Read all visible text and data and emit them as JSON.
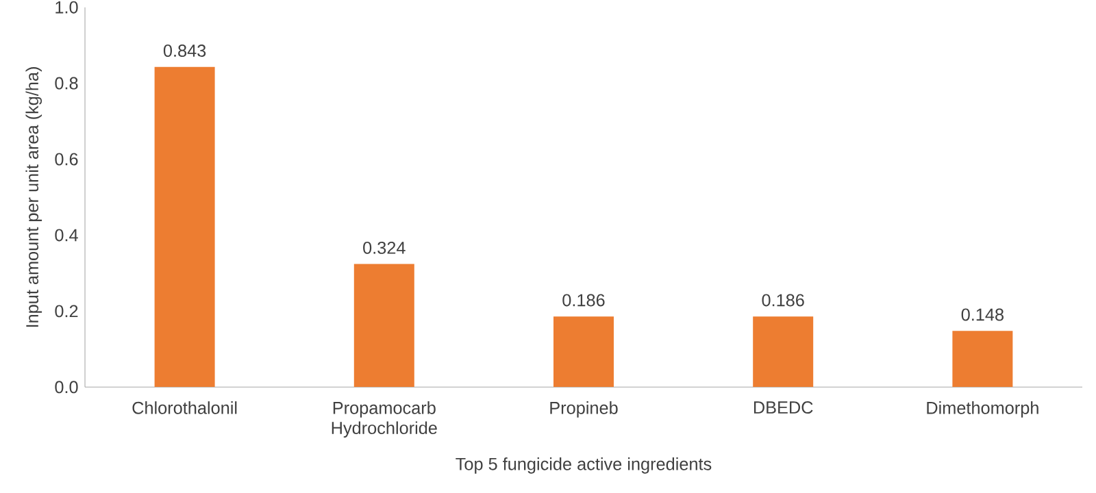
{
  "chart_data": {
    "type": "bar",
    "xlabel": "Top 5 fungicide active ingredients",
    "ylabel": "Input amount per unit area (kg/ha)",
    "categories": [
      "Chlorothalonil",
      "Propamocarb Hydrochloride",
      "Propineb",
      "DBEDC",
      "Dimethomorph"
    ],
    "values": [
      0.843,
      0.324,
      0.186,
      0.186,
      0.148
    ],
    "color": "#ed7d31",
    "ylim": [
      0,
      1.0
    ],
    "yticks": [
      {
        "value": 0,
        "label": "0.0"
      },
      {
        "value": 0.2,
        "label": "0.2"
      },
      {
        "value": 0.4,
        "label": "0.4"
      },
      {
        "value": 0.6,
        "label": "0.6"
      },
      {
        "value": 0.8,
        "label": "0.8"
      },
      {
        "value": 1.0,
        "label": "1.0"
      }
    ],
    "data_labels": true
  }
}
